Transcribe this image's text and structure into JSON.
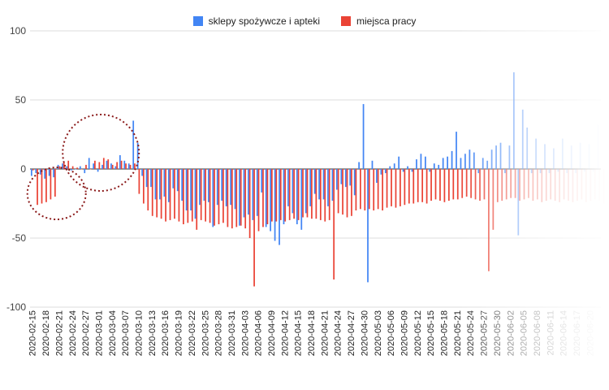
{
  "chart_data": {
    "type": "bar",
    "title": "",
    "xlabel": "",
    "ylabel": "",
    "ylim": [
      -100,
      100
    ],
    "yticks": [
      100,
      50,
      0,
      -50,
      -100
    ],
    "grid": true,
    "legend_position": "top-center",
    "start_date": "2020-02-15",
    "tick_every_days": 3,
    "series": [
      {
        "name": "sklepy spożywcze i apteki",
        "color": "#4285f4",
        "values": [
          -5,
          -3,
          -4,
          -7,
          -5,
          -6,
          3,
          4,
          2,
          -1,
          0,
          2,
          -3,
          8,
          4,
          -2,
          3,
          6,
          4,
          2,
          10,
          6,
          4,
          35,
          19,
          -5,
          -13,
          -13,
          -22,
          -22,
          -20,
          -24,
          -14,
          -16,
          -23,
          -30,
          -30,
          -36,
          -26,
          -23,
          -24,
          -42,
          -26,
          -23,
          -27,
          -26,
          -29,
          -41,
          -35,
          -33,
          -37,
          -34,
          -17,
          -42,
          -45,
          -52,
          -55,
          -40,
          -27,
          -32,
          -40,
          -44,
          -32,
          -27,
          -18,
          -22,
          -22,
          -27,
          -23,
          -15,
          -11,
          -13,
          -12,
          -19,
          5,
          47,
          -82,
          6,
          -10,
          -4,
          -3,
          2,
          4,
          9,
          -2,
          2,
          -2,
          7,
          11,
          9,
          -2,
          4,
          3,
          8,
          9,
          13,
          27,
          8,
          11,
          14,
          12,
          -3,
          8,
          6,
          14,
          17,
          19,
          -3,
          17,
          70,
          -48,
          43,
          30,
          -3,
          22,
          -3,
          18,
          -3,
          15,
          -2,
          22,
          -3,
          17,
          -3,
          19,
          -2,
          18,
          -2,
          32
        ]
      },
      {
        "name": "miejsca pracy",
        "color": "#ea4335",
        "values": [
          -1,
          -26,
          -25,
          -24,
          -22,
          -20,
          2,
          5,
          6,
          2,
          1,
          0,
          3,
          0,
          6,
          5,
          8,
          7,
          3,
          5,
          6,
          4,
          3,
          4,
          -18,
          -25,
          -30,
          -34,
          -35,
          -36,
          -38,
          -37,
          -36,
          -38,
          -40,
          -39,
          -38,
          -44,
          -37,
          -38,
          -39,
          -41,
          -40,
          -39,
          -42,
          -43,
          -42,
          -41,
          -43,
          -50,
          -85,
          -45,
          -42,
          -40,
          -38,
          -38,
          -37,
          -38,
          -37,
          -36,
          -37,
          -35,
          -35,
          -36,
          -36,
          -37,
          -38,
          -37,
          -80,
          -32,
          -33,
          -35,
          -34,
          -30,
          -29,
          -30,
          -29,
          -30,
          -29,
          -30,
          -28,
          -27,
          -28,
          -27,
          -26,
          -25,
          -25,
          -24,
          -24,
          -25,
          -23,
          -22,
          -23,
          -24,
          -23,
          -22,
          -22,
          -21,
          -20,
          -21,
          -22,
          -23,
          -22,
          -74,
          -44,
          -24,
          -23,
          -22,
          -21,
          -21,
          -23,
          -22,
          -21,
          -23,
          -22,
          -24,
          -23,
          -22,
          -23,
          -24,
          -22,
          -23,
          -24,
          -23,
          -22,
          -24,
          -23,
          -22,
          -23,
          -25
        ]
      }
    ]
  }
}
